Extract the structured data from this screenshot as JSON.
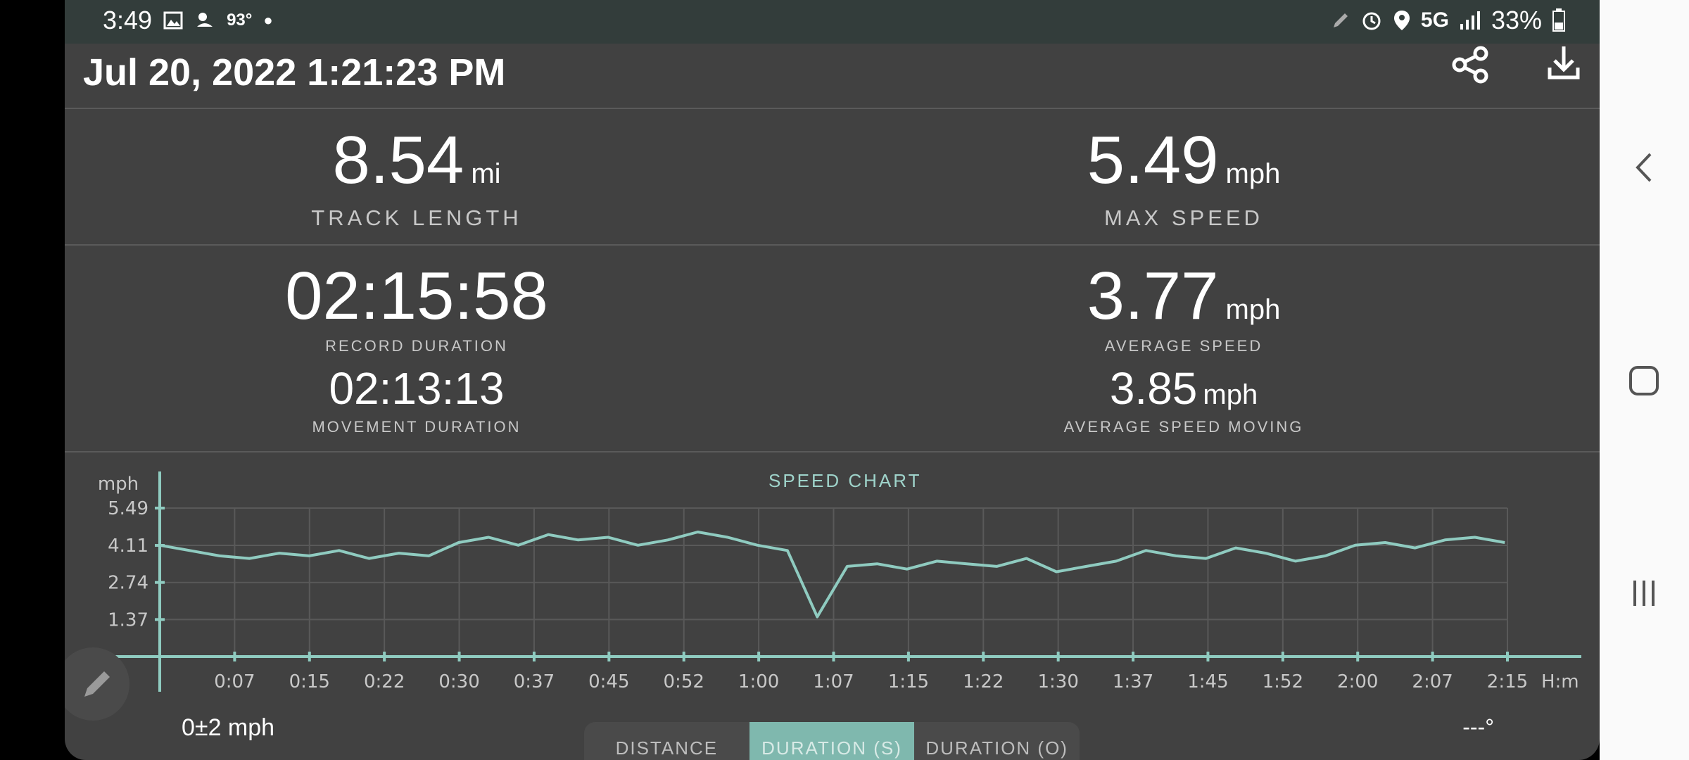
{
  "status_bar": {
    "time": "3:49",
    "temperature": "93°",
    "network": "5G",
    "battery": "33%"
  },
  "header": {
    "title": "Jul 20, 2022 1:21:23 PM"
  },
  "stats": {
    "track_length": {
      "value": "8.54",
      "unit": "mi",
      "label": "TRACK LENGTH"
    },
    "max_speed": {
      "value": "5.49",
      "unit": "mph",
      "label": "MAX SPEED"
    },
    "record_duration": {
      "value": "02:15:58",
      "label": "RECORD DURATION"
    },
    "average_speed": {
      "value": "3.77",
      "unit": "mph",
      "label": "AVERAGE SPEED"
    },
    "movement_duration": {
      "value": "02:13:13",
      "label": "MOVEMENT DURATION"
    },
    "average_speed_moving": {
      "value": "3.85",
      "unit": "mph",
      "label": "AVERAGE SPEED MOVING"
    }
  },
  "chart_data": {
    "type": "line",
    "title": "SPEED CHART",
    "ylabel": "mph",
    "xlabel": "H:m",
    "ylim": [
      0,
      5.49
    ],
    "yticks": [
      "5.49",
      "4.11",
      "2.74",
      "1.37"
    ],
    "xticks": [
      "0:07",
      "0:15",
      "0:22",
      "0:30",
      "0:37",
      "0:45",
      "0:52",
      "1:00",
      "1:07",
      "1:15",
      "1:22",
      "1:30",
      "1:37",
      "1:45",
      "1:52",
      "2:00",
      "2:07",
      "2:15"
    ],
    "grid": true,
    "color": "#8fcbc0",
    "series": [
      {
        "x": [
          0,
          3,
          6,
          9,
          12,
          15,
          18,
          21,
          24,
          27,
          30,
          33,
          36,
          39,
          42,
          45,
          48,
          51,
          54,
          57,
          60,
          63,
          66,
          69,
          72,
          75,
          78,
          81,
          84,
          87,
          90,
          93,
          96,
          99,
          102,
          105,
          108,
          111,
          114,
          117,
          120,
          123,
          126,
          129,
          132,
          135
        ],
        "values": [
          4.2,
          4.0,
          3.8,
          3.7,
          3.9,
          3.8,
          4.0,
          3.7,
          3.9,
          3.8,
          4.3,
          4.5,
          4.2,
          4.6,
          4.4,
          4.5,
          4.2,
          4.4,
          4.7,
          4.5,
          4.2,
          4.0,
          1.5,
          3.4,
          3.5,
          3.3,
          3.6,
          3.5,
          3.4,
          3.7,
          3.2,
          3.4,
          3.6,
          4.0,
          3.8,
          3.7,
          4.1,
          3.9,
          3.6,
          3.8,
          4.2,
          4.3,
          4.1,
          4.4,
          4.5,
          4.3
        ]
      }
    ]
  },
  "footer": {
    "accuracy": "0±2 mph",
    "temperature": "---°",
    "modes": [
      "DISTANCE",
      "DURATION (S)",
      "DURATION (O)"
    ],
    "active_mode": 1
  }
}
